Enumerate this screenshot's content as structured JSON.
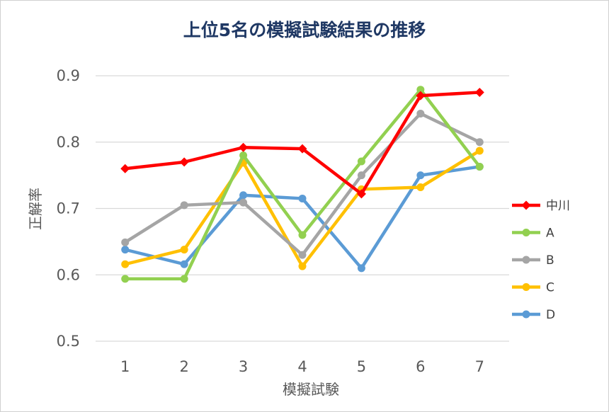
{
  "chart_data": {
    "type": "line",
    "title": "上位5名の模擬試験結果の推移",
    "xlabel": "模擬試験",
    "ylabel": "正解率",
    "x": [
      1,
      2,
      3,
      4,
      5,
      6,
      7
    ],
    "ylim": [
      0.5,
      0.9
    ],
    "yticks": [
      0.5,
      0.6,
      0.7,
      0.8,
      0.9
    ],
    "ytick_labels": [
      "0.5",
      "0.6",
      "0.7",
      "0.8",
      "0.9"
    ],
    "grid": true,
    "legend_position": "right",
    "series": [
      {
        "name": "中川",
        "color": "#ff0000",
        "marker": "diamond",
        "values": [
          0.76,
          0.77,
          0.792,
          0.79,
          0.722,
          0.87,
          0.875
        ]
      },
      {
        "name": "A",
        "color": "#92d050",
        "marker": "circle",
        "values": [
          0.594,
          0.594,
          0.78,
          0.66,
          0.771,
          0.879,
          0.763
        ]
      },
      {
        "name": "B",
        "color": "#a5a5a5",
        "marker": "circle",
        "values": [
          0.649,
          0.705,
          0.709,
          0.63,
          0.75,
          0.843,
          0.8
        ]
      },
      {
        "name": "C",
        "color": "#ffc000",
        "marker": "circle",
        "values": [
          0.616,
          0.638,
          0.769,
          0.613,
          0.729,
          0.732,
          0.787
        ]
      },
      {
        "name": "D",
        "color": "#5b9bd5",
        "marker": "circle",
        "values": [
          0.638,
          0.616,
          0.72,
          0.715,
          0.61,
          0.75,
          0.763
        ]
      }
    ]
  }
}
